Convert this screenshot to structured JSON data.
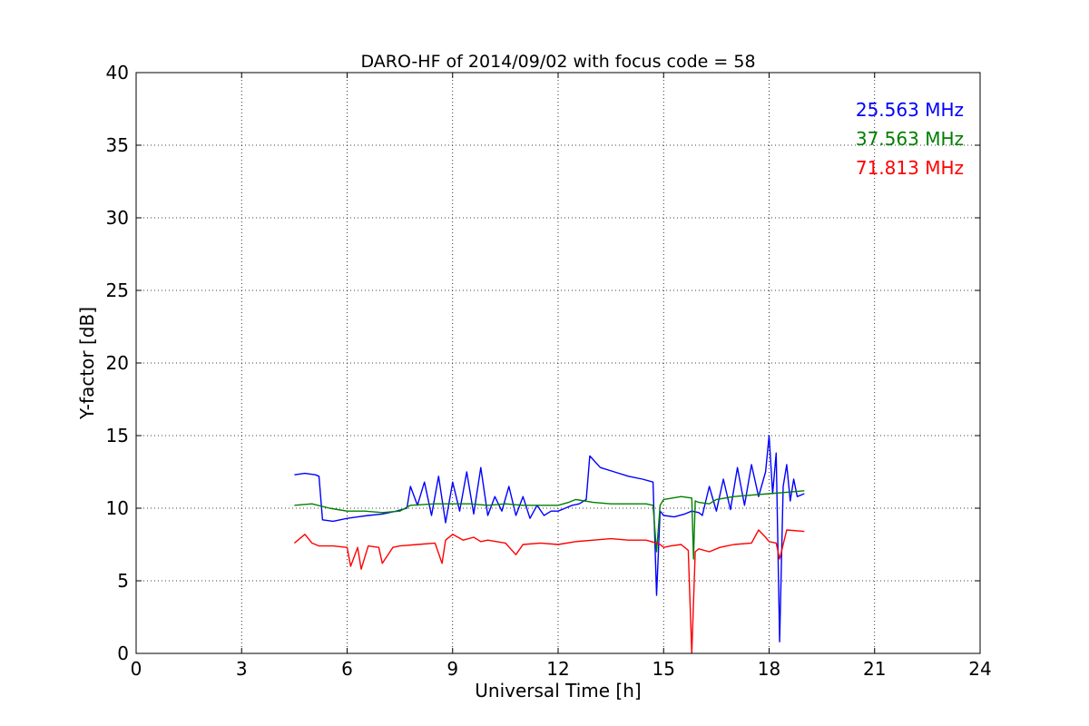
{
  "chart_data": {
    "type": "line",
    "title": "DARO-HF of 2014/09/02 with focus code = 58",
    "xlabel": "Universal Time [h]",
    "ylabel": "Y-factor [dB]",
    "xlim": [
      0,
      24
    ],
    "ylim": [
      0,
      40
    ],
    "xticks": [
      0,
      3,
      6,
      9,
      12,
      15,
      18,
      21,
      24
    ],
    "yticks": [
      0,
      5,
      10,
      15,
      20,
      25,
      30,
      35,
      40
    ],
    "xtick_labels": [
      "0",
      "3",
      "6",
      "9",
      "12",
      "15",
      "18",
      "21",
      "24"
    ],
    "ytick_labels": [
      "0",
      "5",
      "10",
      "15",
      "20",
      "25",
      "30",
      "35",
      "40"
    ],
    "grid": true,
    "legend": "top-right",
    "series": [
      {
        "name": "25.563 MHz",
        "color": "#0000ff",
        "x": [
          4.5,
          4.8,
          5.1,
          5.2,
          5.3,
          5.6,
          6.0,
          6.3,
          6.6,
          7.0,
          7.4,
          7.7,
          7.8,
          8.0,
          8.2,
          8.4,
          8.6,
          8.8,
          9.0,
          9.2,
          9.4,
          9.6,
          9.8,
          10.0,
          10.2,
          10.4,
          10.6,
          10.8,
          11.0,
          11.2,
          11.4,
          11.6,
          11.8,
          12.0,
          12.2,
          12.4,
          12.6,
          12.8,
          12.9,
          13.2,
          13.6,
          14.0,
          14.4,
          14.7,
          14.8,
          14.9,
          15.0,
          15.3,
          15.6,
          15.8,
          16.0,
          16.1,
          16.3,
          16.5,
          16.7,
          16.9,
          17.1,
          17.3,
          17.5,
          17.7,
          17.9,
          18.0,
          18.1,
          18.2,
          18.3,
          18.4,
          18.5,
          18.6,
          18.7,
          18.8,
          19.0
        ],
        "values": [
          12.3,
          12.4,
          12.3,
          12.2,
          9.2,
          9.1,
          9.3,
          9.4,
          9.5,
          9.6,
          9.8,
          10.0,
          11.5,
          10.2,
          11.8,
          9.5,
          12.2,
          9.0,
          11.8,
          9.8,
          12.5,
          9.6,
          12.8,
          9.5,
          10.8,
          9.8,
          11.5,
          9.5,
          10.8,
          9.3,
          10.2,
          9.5,
          9.8,
          9.8,
          10.0,
          10.2,
          10.3,
          10.6,
          13.6,
          12.8,
          12.5,
          12.2,
          12.0,
          11.8,
          4.0,
          9.8,
          9.5,
          9.4,
          9.6,
          9.8,
          9.7,
          9.5,
          11.5,
          9.8,
          12.0,
          9.9,
          12.8,
          10.2,
          13.0,
          10.8,
          12.5,
          15.0,
          11.0,
          13.8,
          0.8,
          11.5,
          13.0,
          10.5,
          12.0,
          10.8,
          11.0
        ]
      },
      {
        "name": "37.563 MHz",
        "color": "#007f00",
        "x": [
          4.5,
          5.0,
          5.5,
          6.0,
          6.5,
          7.0,
          7.5,
          7.8,
          8.5,
          9.0,
          9.5,
          10.0,
          10.5,
          11.0,
          11.5,
          12.0,
          12.3,
          12.5,
          13.0,
          13.5,
          14.0,
          14.5,
          14.7,
          14.8,
          14.9,
          15.0,
          15.5,
          15.8,
          15.85,
          15.9,
          16.0,
          16.3,
          16.5,
          17.0,
          17.5,
          18.0,
          18.5,
          19.0
        ],
        "values": [
          10.2,
          10.3,
          10.0,
          9.8,
          9.8,
          9.7,
          9.8,
          10.2,
          10.3,
          10.3,
          10.3,
          10.2,
          10.3,
          10.2,
          10.2,
          10.2,
          10.4,
          10.6,
          10.4,
          10.3,
          10.3,
          10.3,
          10.2,
          7.0,
          10.2,
          10.6,
          10.8,
          10.7,
          6.5,
          10.5,
          10.4,
          10.3,
          10.6,
          10.8,
          10.9,
          11.0,
          11.1,
          11.2
        ]
      },
      {
        "name": "71.813 MHz",
        "color": "#ff0000",
        "x": [
          4.5,
          4.8,
          5.0,
          5.2,
          5.6,
          6.0,
          6.1,
          6.3,
          6.4,
          6.6,
          6.9,
          7.0,
          7.3,
          7.5,
          8.0,
          8.5,
          8.7,
          8.8,
          9.0,
          9.3,
          9.6,
          9.8,
          10.0,
          10.5,
          10.8,
          11.0,
          11.5,
          12.0,
          12.5,
          13.0,
          13.5,
          14.0,
          14.5,
          14.8,
          14.9,
          15.0,
          15.2,
          15.5,
          15.7,
          15.8,
          15.9,
          16.0,
          16.3,
          16.6,
          16.8,
          17.0,
          17.5,
          17.7,
          17.9,
          18.0,
          18.2,
          18.3,
          18.5,
          19.0
        ],
        "values": [
          7.6,
          8.2,
          7.6,
          7.4,
          7.4,
          7.3,
          6.0,
          7.3,
          5.8,
          7.4,
          7.3,
          6.2,
          7.3,
          7.4,
          7.5,
          7.6,
          6.2,
          7.8,
          8.2,
          7.8,
          8.0,
          7.7,
          7.8,
          7.6,
          6.8,
          7.5,
          7.6,
          7.5,
          7.7,
          7.8,
          7.9,
          7.8,
          7.8,
          7.6,
          7.5,
          7.3,
          7.4,
          7.5,
          7.1,
          0.0,
          7.0,
          7.2,
          7.0,
          7.3,
          7.4,
          7.5,
          7.6,
          8.5,
          8.0,
          7.7,
          7.6,
          6.5,
          8.5,
          8.4
        ]
      }
    ]
  }
}
